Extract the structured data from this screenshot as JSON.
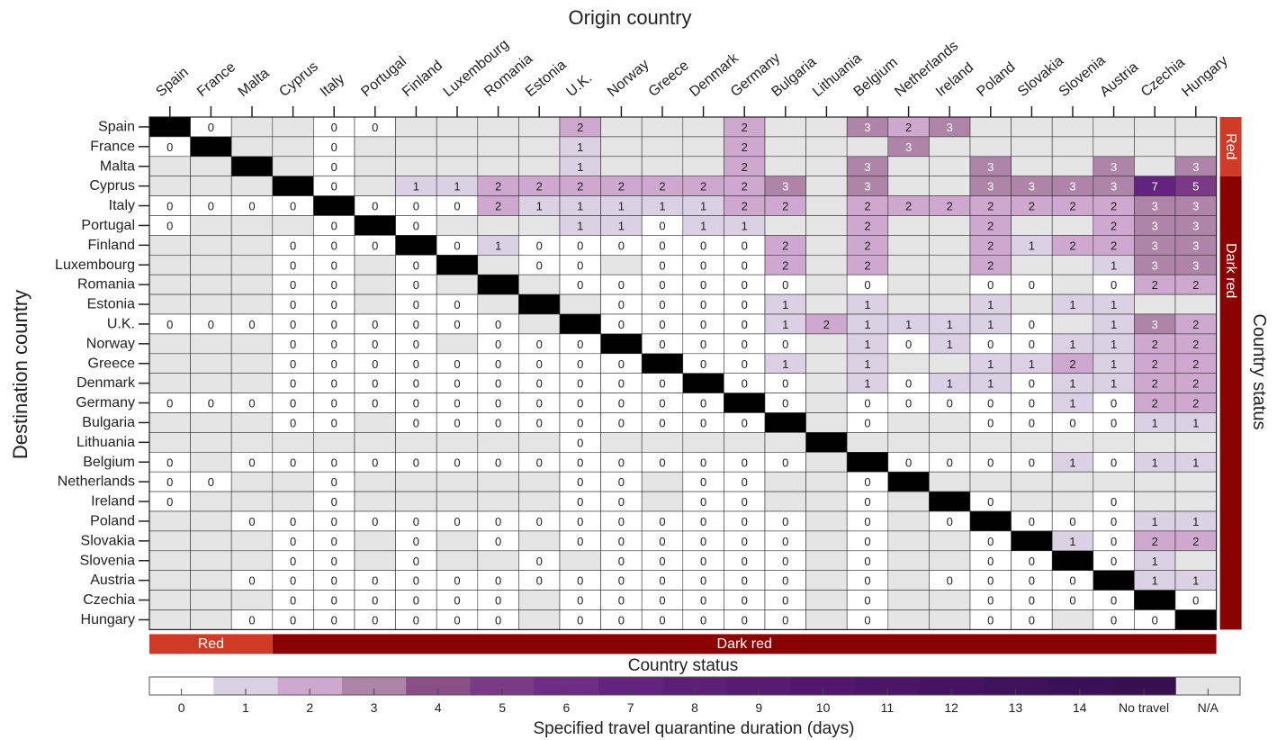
{
  "chart_data": {
    "type": "heatmap",
    "xlabel": "Origin country",
    "ylabel": "Destination country",
    "right_label": "Country status",
    "bottom_label": "Country status",
    "colorbar_label": "Specified travel quarantine duration (days)",
    "countries": [
      "Spain",
      "France",
      "Malta",
      "Cyprus",
      "Italy",
      "Portugal",
      "Finland",
      "Luxembourg",
      "Romania",
      "Estonia",
      "U.K.",
      "Norway",
      "Greece",
      "Denmark",
      "Germany",
      "Bulgaria",
      "Lithuania",
      "Belgium",
      "Netherlands",
      "Ireland",
      "Poland",
      "Slovakia",
      "Slovenia",
      "Austria",
      "Czechia",
      "Hungary"
    ],
    "status_bands": [
      {
        "label": "Red",
        "count": 3
      },
      {
        "label": "Dark red",
        "count": 23
      }
    ],
    "legend": {
      "labels": [
        "0",
        "1",
        "2",
        "3",
        "4",
        "5",
        "6",
        "7",
        "8",
        "9",
        "10",
        "11",
        "12",
        "13",
        "14",
        "No travel",
        "N/A"
      ],
      "colors": [
        "#ffffff",
        "#dcd0e4",
        "#cfa8cf",
        "#ae84a9",
        "#8a4f86",
        "#7a3a86",
        "#6f2c84",
        "#63237e",
        "#5c1f78",
        "#571a72",
        "#52176d",
        "#4c1568",
        "#461363",
        "#40125e",
        "#3a1158",
        "#371052",
        "#e5e5e5"
      ]
    },
    "colors": {
      "na": "#e5e5e5",
      "diagonal": "#000000",
      "red": "#d13a27",
      "dark_red": "#8b0000"
    },
    "values": [
      [
        "X",
        "0",
        "N",
        "N",
        "0",
        "0",
        "N",
        "N",
        "N",
        "N",
        "2",
        "N",
        "N",
        "N",
        "2",
        "N",
        "N",
        "3",
        "2",
        "3",
        "N",
        "N",
        "N",
        "N",
        "N",
        "N"
      ],
      [
        "0",
        "X",
        "N",
        "N",
        "0",
        "N",
        "N",
        "N",
        "N",
        "N",
        "1",
        "N",
        "N",
        "N",
        "2",
        "N",
        "N",
        "N",
        "3",
        "N",
        "N",
        "N",
        "N",
        "N",
        "N",
        "N"
      ],
      [
        "N",
        "N",
        "X",
        "N",
        "0",
        "N",
        "N",
        "N",
        "N",
        "N",
        "1",
        "N",
        "N",
        "N",
        "2",
        "N",
        "N",
        "3",
        "N",
        "N",
        "3",
        "N",
        "N",
        "3",
        "N",
        "3"
      ],
      [
        "N",
        "N",
        "N",
        "X",
        "0",
        "N",
        "1",
        "1",
        "2",
        "2",
        "2",
        "2",
        "2",
        "2",
        "2",
        "3",
        "N",
        "3",
        "N",
        "N",
        "3",
        "3",
        "3",
        "3",
        "7",
        "5"
      ],
      [
        "0",
        "0",
        "0",
        "0",
        "X",
        "0",
        "0",
        "0",
        "2",
        "1",
        "1",
        "1",
        "1",
        "1",
        "2",
        "2",
        "N",
        "2",
        "2",
        "2",
        "2",
        "2",
        "2",
        "2",
        "3",
        "3"
      ],
      [
        "0",
        "N",
        "N",
        "N",
        "0",
        "X",
        "0",
        "N",
        "N",
        "N",
        "1",
        "1",
        "0",
        "1",
        "1",
        "N",
        "N",
        "2",
        "N",
        "N",
        "2",
        "N",
        "N",
        "2",
        "3",
        "3"
      ],
      [
        "N",
        "N",
        "N",
        "0",
        "0",
        "0",
        "X",
        "0",
        "1",
        "0",
        "0",
        "0",
        "0",
        "0",
        "0",
        "2",
        "N",
        "2",
        "N",
        "N",
        "2",
        "1",
        "2",
        "2",
        "3",
        "3"
      ],
      [
        "N",
        "N",
        "N",
        "0",
        "0",
        "N",
        "0",
        "X",
        "N",
        "0",
        "0",
        "N",
        "0",
        "0",
        "0",
        "2",
        "N",
        "2",
        "N",
        "N",
        "2",
        "N",
        "N",
        "1",
        "3",
        "3"
      ],
      [
        "N",
        "N",
        "N",
        "0",
        "0",
        "N",
        "0",
        "N",
        "X",
        "N",
        "0",
        "0",
        "0",
        "0",
        "0",
        "0",
        "N",
        "0",
        "N",
        "N",
        "0",
        "0",
        "N",
        "0",
        "2",
        "2"
      ],
      [
        "N",
        "N",
        "N",
        "0",
        "0",
        "N",
        "0",
        "0",
        "N",
        "X",
        "N",
        "0",
        "0",
        "0",
        "0",
        "1",
        "N",
        "1",
        "N",
        "N",
        "1",
        "N",
        "1",
        "1",
        "N",
        "N"
      ],
      [
        "0",
        "0",
        "0",
        "0",
        "0",
        "0",
        "0",
        "0",
        "0",
        "N",
        "X",
        "0",
        "0",
        "0",
        "0",
        "1",
        "2",
        "1",
        "1",
        "1",
        "1",
        "0",
        "N",
        "1",
        "3",
        "2"
      ],
      [
        "N",
        "N",
        "N",
        "0",
        "0",
        "0",
        "0",
        "N",
        "0",
        "0",
        "0",
        "X",
        "0",
        "0",
        "0",
        "0",
        "N",
        "1",
        "0",
        "1",
        "0",
        "0",
        "1",
        "1",
        "2",
        "2"
      ],
      [
        "N",
        "N",
        "N",
        "0",
        "0",
        "0",
        "0",
        "0",
        "0",
        "0",
        "0",
        "0",
        "X",
        "0",
        "0",
        "1",
        "N",
        "1",
        "N",
        "N",
        "1",
        "1",
        "2",
        "1",
        "2",
        "2"
      ],
      [
        "N",
        "N",
        "N",
        "0",
        "0",
        "0",
        "0",
        "0",
        "0",
        "0",
        "0",
        "0",
        "0",
        "X",
        "0",
        "0",
        "N",
        "1",
        "0",
        "1",
        "1",
        "0",
        "1",
        "1",
        "2",
        "2"
      ],
      [
        "0",
        "0",
        "0",
        "0",
        "0",
        "0",
        "0",
        "0",
        "0",
        "0",
        "0",
        "0",
        "0",
        "0",
        "X",
        "0",
        "N",
        "0",
        "0",
        "0",
        "0",
        "0",
        "1",
        "0",
        "2",
        "2"
      ],
      [
        "N",
        "N",
        "N",
        "0",
        "0",
        "N",
        "0",
        "0",
        "0",
        "0",
        "0",
        "0",
        "0",
        "0",
        "0",
        "X",
        "N",
        "0",
        "N",
        "N",
        "0",
        "0",
        "0",
        "0",
        "1",
        "1"
      ],
      [
        "N",
        "N",
        "N",
        "N",
        "N",
        "N",
        "N",
        "N",
        "N",
        "N",
        "0",
        "N",
        "N",
        "N",
        "N",
        "N",
        "X",
        "N",
        "N",
        "N",
        "N",
        "N",
        "N",
        "N",
        "N",
        "N"
      ],
      [
        "0",
        "N",
        "0",
        "0",
        "0",
        "0",
        "0",
        "0",
        "0",
        "0",
        "0",
        "0",
        "0",
        "0",
        "0",
        "0",
        "N",
        "X",
        "0",
        "0",
        "0",
        "0",
        "1",
        "0",
        "1",
        "1"
      ],
      [
        "0",
        "0",
        "N",
        "N",
        "0",
        "N",
        "N",
        "N",
        "N",
        "N",
        "0",
        "0",
        "N",
        "0",
        "0",
        "N",
        "N",
        "0",
        "X",
        "N",
        "N",
        "N",
        "N",
        "N",
        "N",
        "N"
      ],
      [
        "0",
        "N",
        "N",
        "N",
        "0",
        "N",
        "N",
        "N",
        "N",
        "N",
        "0",
        "0",
        "N",
        "0",
        "0",
        "N",
        "N",
        "0",
        "N",
        "X",
        "0",
        "N",
        "N",
        "0",
        "N",
        "N"
      ],
      [
        "N",
        "N",
        "0",
        "0",
        "0",
        "0",
        "0",
        "0",
        "0",
        "0",
        "0",
        "0",
        "0",
        "0",
        "0",
        "0",
        "N",
        "0",
        "N",
        "0",
        "X",
        "0",
        "0",
        "0",
        "1",
        "1"
      ],
      [
        "N",
        "N",
        "N",
        "0",
        "0",
        "N",
        "0",
        "N",
        "0",
        "N",
        "0",
        "0",
        "0",
        "0",
        "0",
        "0",
        "N",
        "0",
        "N",
        "N",
        "0",
        "X",
        "1",
        "0",
        "2",
        "2"
      ],
      [
        "N",
        "N",
        "N",
        "0",
        "0",
        "N",
        "0",
        "N",
        "N",
        "0",
        "N",
        "0",
        "0",
        "0",
        "0",
        "0",
        "N",
        "0",
        "N",
        "N",
        "0",
        "0",
        "X",
        "0",
        "1",
        "N"
      ],
      [
        "N",
        "N",
        "0",
        "0",
        "0",
        "0",
        "0",
        "0",
        "0",
        "0",
        "0",
        "0",
        "0",
        "0",
        "0",
        "0",
        "N",
        "0",
        "N",
        "0",
        "0",
        "0",
        "0",
        "X",
        "1",
        "1"
      ],
      [
        "N",
        "N",
        "N",
        "0",
        "0",
        "0",
        "0",
        "0",
        "0",
        "N",
        "0",
        "0",
        "0",
        "0",
        "0",
        "0",
        "N",
        "0",
        "N",
        "N",
        "0",
        "0",
        "0",
        "0",
        "X",
        "0"
      ],
      [
        "N",
        "N",
        "0",
        "0",
        "0",
        "0",
        "0",
        "0",
        "0",
        "N",
        "0",
        "0",
        "0",
        "0",
        "0",
        "0",
        "N",
        "0",
        "N",
        "N",
        "0",
        "0",
        "N",
        "0",
        "0",
        "X"
      ]
    ]
  }
}
